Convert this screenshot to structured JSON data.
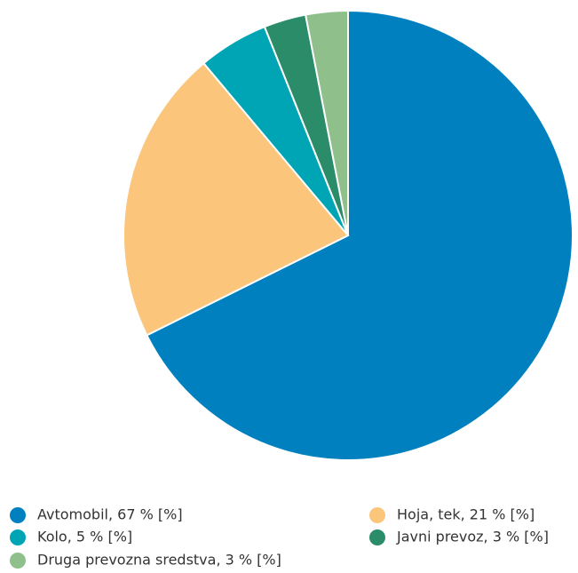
{
  "chart_data": {
    "type": "pie",
    "categories": [
      "Avtomobil, 67 % [%]",
      "Hoja, tek, 21 % [%]",
      "Kolo, 5 % [%]",
      "Javni prevoz, 3 % [%]",
      "Druga prevozna sredstva, 3 % [%]"
    ],
    "values": [
      67,
      21,
      5,
      3,
      3
    ],
    "colors": [
      "#0080bf",
      "#fbc67c",
      "#00a5b5",
      "#2a8c69",
      "#8fbf8a"
    ]
  }
}
